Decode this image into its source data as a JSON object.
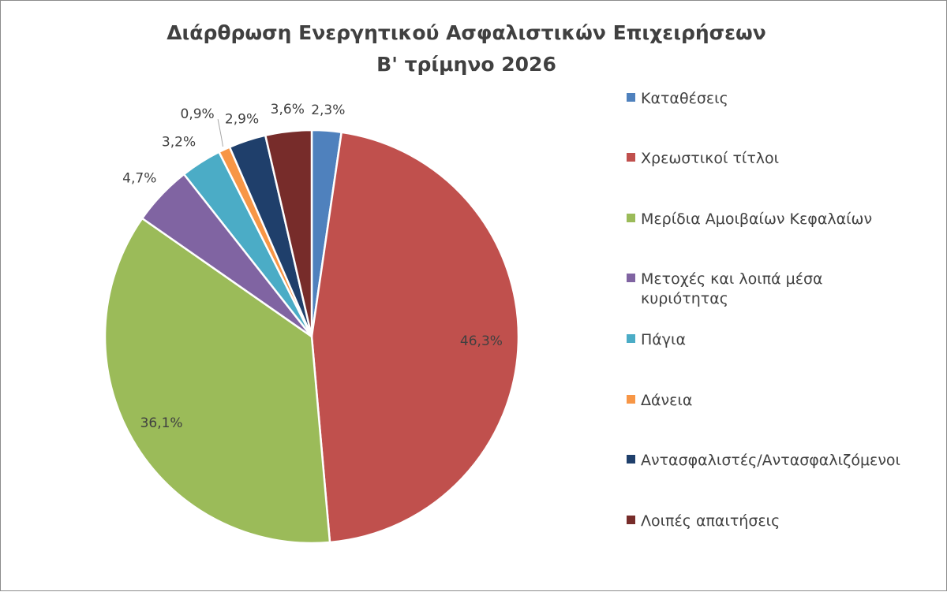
{
  "chart_data": {
    "type": "pie",
    "title": "Διάρθρωση Ενεργητικού Ασφαλιστικών Επιχειρήσεων",
    "subtitle": "Β' τρίμηνο 2026",
    "legend_position": "right",
    "slices": [
      {
        "name": "Καταθέσεις",
        "value": 2.3,
        "label": "2,3%",
        "color": "#4f81bd"
      },
      {
        "name": "Χρεωστικοί τίτλοι",
        "value": 46.3,
        "label": "46,3%",
        "color": "#c0504d"
      },
      {
        "name": "Μερίδια Αμοιβαίων Κεφαλαίων",
        "value": 36.1,
        "label": "36,1%",
        "color": "#9bbb59"
      },
      {
        "name": "Μετοχές και λοιπά μέσα κυριότητας",
        "value": 4.7,
        "label": "4,7%",
        "color": "#8064a2"
      },
      {
        "name": "Πάγια",
        "value": 3.2,
        "label": "3,2%",
        "color": "#4bacc6"
      },
      {
        "name": "Δάνεια",
        "value": 0.9,
        "label": "0,9%",
        "color": "#f79646"
      },
      {
        "name": "Αντασφαλιστές/Αντασφαλιζόμενοι",
        "value": 2.9,
        "label": "2,9%",
        "color": "#1f3f6b"
      },
      {
        "name": "Λοιπές απαιτήσεις",
        "value": 3.6,
        "label": "3,6%",
        "color": "#772c2a"
      }
    ]
  }
}
